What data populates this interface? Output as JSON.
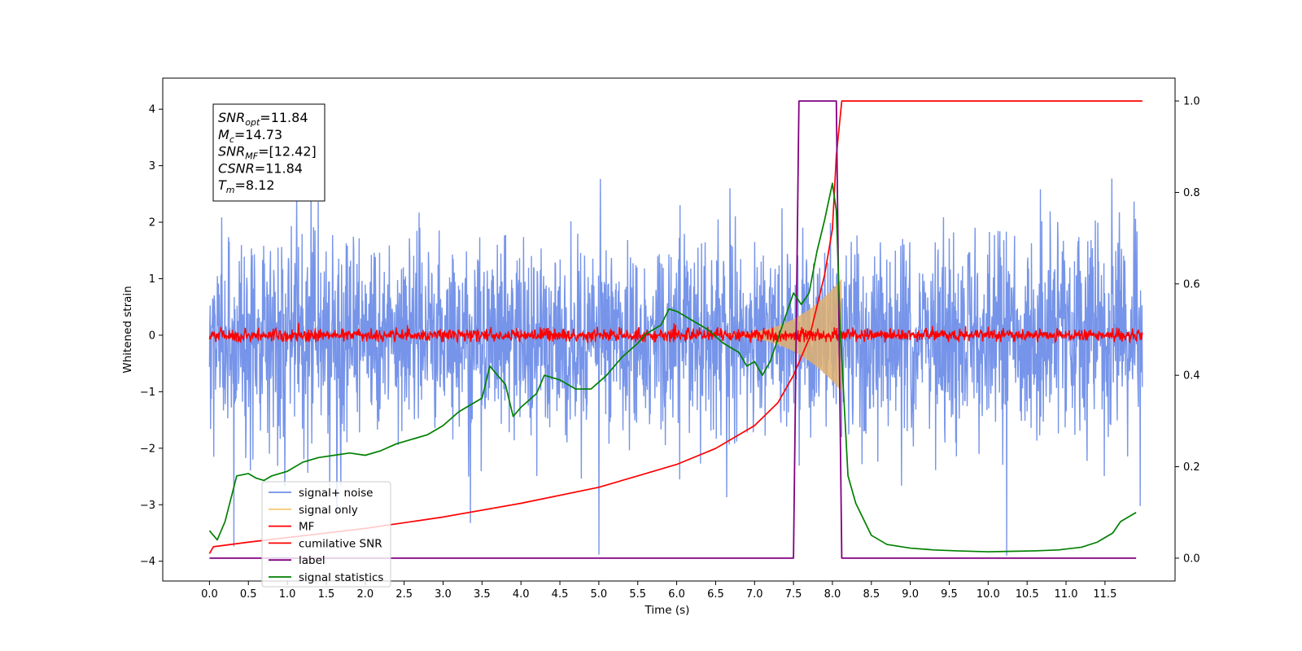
{
  "chart_data": {
    "type": "line",
    "xlabel": "Time (s)",
    "ylabel": "Whitened strain",
    "xlim": [
      -0.6,
      12.4
    ],
    "ylim_left": [
      -4.35,
      4.55
    ],
    "ylim_right": [
      -0.05,
      1.05
    ],
    "x_ticks": [
      "0.0",
      "0.5",
      "1.0",
      "1.5",
      "2.0",
      "2.5",
      "3.0",
      "3.5",
      "4.0",
      "4.5",
      "5.0",
      "5.5",
      "6.0",
      "6.5",
      "7.0",
      "7.5",
      "8.0",
      "8.5",
      "9.0",
      "9.5",
      "10.0",
      "10.5",
      "11.0",
      "11.5"
    ],
    "y_ticks_left": [
      "4",
      "3",
      "2",
      "1",
      "0",
      "−1",
      "−2",
      "−3",
      "−4"
    ],
    "y_ticks_right": [
      "1.0",
      "0.8",
      "0.6",
      "0.4",
      "0.2",
      "0.0"
    ],
    "annotation": {
      "lines": [
        {
          "sym": "SNR",
          "sub": "opt",
          "val": "=11.84"
        },
        {
          "sym": "M",
          "sub": "c",
          "val": "=14.73"
        },
        {
          "sym": "SNR",
          "sub": "MF",
          "val": "=[12.42]"
        },
        {
          "sym": "CSNR",
          "sub": "",
          "val": "=11.84"
        },
        {
          "sym": "T",
          "sub": "m",
          "val": "=8.12"
        }
      ]
    },
    "legend": {
      "position": "lower-left",
      "entries": [
        {
          "label": "signal+ noise",
          "color": "#6f8ee8"
        },
        {
          "label": "signal only",
          "color": "#f5c878"
        },
        {
          "label": "MF",
          "color": "#ff0000"
        },
        {
          "label": "cumilative SNR",
          "color": "#ff0000"
        },
        {
          "label": "label",
          "color": "#800080"
        },
        {
          "label": "signal statistics",
          "color": "#008000"
        }
      ]
    },
    "series": [
      {
        "name": "signal+ noise",
        "axis": "left",
        "color": "#6f8ee8",
        "kind": "noise",
        "x_range": [
          0,
          11.98
        ],
        "sigma": 0.85
      },
      {
        "name": "signal only",
        "axis": "left",
        "color": "#e0b070",
        "kind": "chirp",
        "x_range": [
          6.3,
          8.12
        ],
        "peak_amplitude": 1.0
      },
      {
        "name": "MF",
        "axis": "left",
        "color": "#ff0000",
        "kind": "noise",
        "x_range": [
          0,
          11.98
        ],
        "sigma": 0.06
      },
      {
        "name": "cumilative SNR",
        "axis": "right",
        "color": "#ff0000",
        "x": [
          0.0,
          0.05,
          0.5,
          1.0,
          2.0,
          3.0,
          4.0,
          5.0,
          5.5,
          6.0,
          6.5,
          7.0,
          7.3,
          7.5,
          7.7,
          7.9,
          8.0,
          8.05,
          8.12,
          8.2,
          11.98
        ],
        "y": [
          0.01,
          0.025,
          0.035,
          0.045,
          0.065,
          0.09,
          0.12,
          0.155,
          0.18,
          0.205,
          0.24,
          0.29,
          0.34,
          0.4,
          0.48,
          0.62,
          0.72,
          0.88,
          1.0,
          1.0,
          1.0
        ]
      },
      {
        "name": "label",
        "axis": "right",
        "color": "#800080",
        "x": [
          0.0,
          7.5,
          7.57,
          8.05,
          8.12,
          11.9
        ],
        "y": [
          0.0,
          0.0,
          1.0,
          1.0,
          0.0,
          0.0
        ]
      },
      {
        "name": "signal statistics",
        "axis": "right",
        "color": "#008000",
        "x": [
          0.0,
          0.1,
          0.2,
          0.35,
          0.5,
          0.6,
          0.7,
          0.8,
          1.0,
          1.2,
          1.4,
          1.6,
          1.8,
          2.0,
          2.2,
          2.4,
          2.6,
          2.8,
          3.0,
          3.2,
          3.4,
          3.5,
          3.6,
          3.8,
          3.9,
          4.0,
          4.2,
          4.3,
          4.5,
          4.7,
          4.9,
          5.1,
          5.3,
          5.5,
          5.6,
          5.8,
          5.9,
          6.0,
          6.2,
          6.4,
          6.6,
          6.8,
          6.9,
          7.0,
          7.1,
          7.2,
          7.3,
          7.4,
          7.5,
          7.6,
          7.7,
          7.8,
          7.9,
          8.0,
          8.05,
          8.1,
          8.2,
          8.3,
          8.5,
          8.7,
          9.0,
          9.3,
          9.6,
          10.0,
          10.3,
          10.6,
          10.9,
          11.2,
          11.4,
          11.6,
          11.7,
          11.9
        ],
        "y": [
          0.06,
          0.04,
          0.08,
          0.18,
          0.185,
          0.175,
          0.17,
          0.18,
          0.19,
          0.21,
          0.22,
          0.225,
          0.23,
          0.225,
          0.235,
          0.25,
          0.26,
          0.27,
          0.29,
          0.32,
          0.34,
          0.35,
          0.42,
          0.38,
          0.31,
          0.33,
          0.36,
          0.4,
          0.39,
          0.37,
          0.37,
          0.4,
          0.44,
          0.47,
          0.49,
          0.51,
          0.545,
          0.54,
          0.52,
          0.5,
          0.47,
          0.45,
          0.42,
          0.43,
          0.4,
          0.43,
          0.48,
          0.53,
          0.58,
          0.555,
          0.58,
          0.67,
          0.74,
          0.82,
          0.76,
          0.5,
          0.18,
          0.12,
          0.05,
          0.03,
          0.022,
          0.018,
          0.016,
          0.014,
          0.015,
          0.016,
          0.018,
          0.024,
          0.035,
          0.055,
          0.08,
          0.1
        ]
      }
    ]
  }
}
